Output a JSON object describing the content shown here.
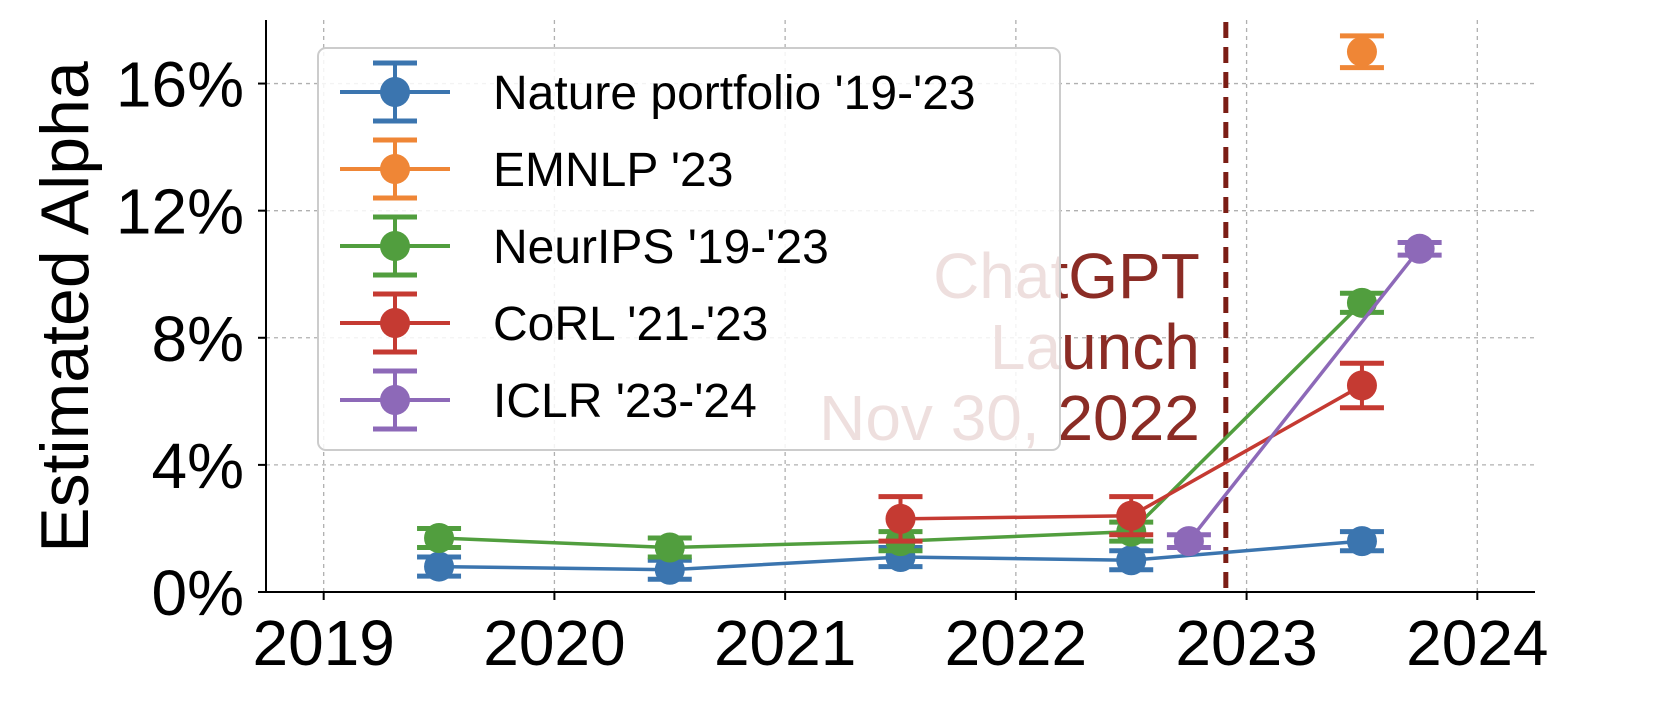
{
  "chart_data": {
    "type": "line",
    "xlabel": "",
    "ylabel": "Estimated Alpha",
    "xlim": [
      2018.75,
      2024.25
    ],
    "ylim": [
      0,
      18
    ],
    "x_ticks": [
      {
        "value": 2019,
        "label": "2019"
      },
      {
        "value": 2020,
        "label": "2020"
      },
      {
        "value": 2021,
        "label": "2021"
      },
      {
        "value": 2022,
        "label": "2022"
      },
      {
        "value": 2023,
        "label": "2023"
      },
      {
        "value": 2024,
        "label": "2024"
      }
    ],
    "y_ticks": [
      {
        "value": 0,
        "label": "0%"
      },
      {
        "value": 4,
        "label": "4%"
      },
      {
        "value": 8,
        "label": "8%"
      },
      {
        "value": 12,
        "label": "12%"
      },
      {
        "value": 16,
        "label": "16%"
      }
    ],
    "grid": true,
    "legend_position": "top-left",
    "series": [
      {
        "name": "Nature portfolio '19-'23",
        "color": "#3b75af",
        "points": [
          {
            "x": 2019.5,
            "y": 0.8,
            "err": 0.3
          },
          {
            "x": 2020.5,
            "y": 0.7,
            "err": 0.3
          },
          {
            "x": 2021.5,
            "y": 1.1,
            "err": 0.3
          },
          {
            "x": 2022.5,
            "y": 1.0,
            "err": 0.3
          },
          {
            "x": 2023.5,
            "y": 1.6,
            "err": 0.3
          }
        ]
      },
      {
        "name": "EMNLP '23",
        "color": "#ef8636",
        "points": [
          {
            "x": 2023.5,
            "y": 17.0,
            "err": 0.5
          }
        ]
      },
      {
        "name": "NeurIPS '19-'23",
        "color": "#519e3e",
        "points": [
          {
            "x": 2019.5,
            "y": 1.7,
            "err": 0.3
          },
          {
            "x": 2020.5,
            "y": 1.4,
            "err": 0.3
          },
          {
            "x": 2021.5,
            "y": 1.6,
            "err": 0.3
          },
          {
            "x": 2022.5,
            "y": 1.9,
            "err": 0.3
          },
          {
            "x": 2023.5,
            "y": 9.1,
            "err": 0.3
          }
        ]
      },
      {
        "name": "CoRL '21-'23",
        "color": "#c53a32",
        "points": [
          {
            "x": 2021.5,
            "y": 2.3,
            "err": 0.7
          },
          {
            "x": 2022.5,
            "y": 2.4,
            "err": 0.6
          },
          {
            "x": 2023.5,
            "y": 6.5,
            "err": 0.7
          }
        ]
      },
      {
        "name": "ICLR '23-'24",
        "color": "#8d69b8",
        "points": [
          {
            "x": 2022.75,
            "y": 1.6,
            "err": 0.2
          },
          {
            "x": 2023.75,
            "y": 10.8,
            "err": 0.2
          }
        ]
      }
    ],
    "annotations": [
      {
        "type": "vline",
        "x": 2022.91,
        "color": "#7b1d15",
        "text_lines": [
          "ChatGPT",
          "Launch",
          "Nov 30, 2022"
        ],
        "text_color": "#8b2c25"
      }
    ]
  }
}
